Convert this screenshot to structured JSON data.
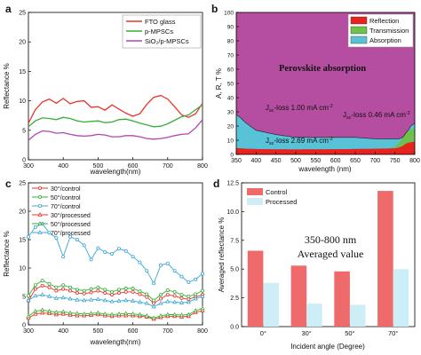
{
  "panels": {
    "a": {
      "letter": "a"
    },
    "b": {
      "letter": "b"
    },
    "c": {
      "letter": "c"
    },
    "d": {
      "letter": "d"
    }
  },
  "chart_data": [
    {
      "id": "a",
      "type": "line",
      "xlabel": "wavelength(nm)",
      "ylabel": "Reflectance %",
      "xlim": [
        300,
        800
      ],
      "ylim": [
        0,
        25
      ],
      "xticks": [
        "300",
        "400",
        "500",
        "600",
        "700",
        "800"
      ],
      "yticks": [
        "0",
        "5",
        "10",
        "15",
        "20",
        "25"
      ],
      "legend": "top-right",
      "series": [
        {
          "name": "FTO glass",
          "color": "#e8362c",
          "x": [
            300,
            320,
            340,
            360,
            380,
            400,
            420,
            440,
            460,
            480,
            500,
            520,
            540,
            560,
            580,
            600,
            620,
            640,
            660,
            680,
            700,
            720,
            740,
            760,
            780,
            800
          ],
          "y": [
            6.2,
            8.5,
            9.8,
            10.3,
            9.6,
            10.4,
            9.5,
            9.9,
            10.0,
            8.9,
            9.0,
            8.4,
            9.3,
            8.6,
            7.9,
            7.4,
            7.8,
            9.4,
            10.6,
            10.9,
            10.3,
            9.0,
            7.6,
            7.2,
            7.8,
            9.6
          ]
        },
        {
          "name": "p-MPSCs",
          "color": "#3aad3a",
          "x": [
            300,
            320,
            340,
            360,
            380,
            400,
            420,
            440,
            460,
            480,
            500,
            520,
            540,
            560,
            580,
            600,
            620,
            640,
            660,
            680,
            700,
            720,
            740,
            760,
            780,
            800
          ],
          "y": [
            5.6,
            6.6,
            7.1,
            7.0,
            6.8,
            7.2,
            7.0,
            6.6,
            6.4,
            6.5,
            6.6,
            6.3,
            6.4,
            6.8,
            6.9,
            6.6,
            6.2,
            5.9,
            5.6,
            5.7,
            6.1,
            6.7,
            7.3,
            7.6,
            8.5,
            9.3
          ]
        },
        {
          "name": "SiO₂/p-MPSCs",
          "color": "#b444b4",
          "x": [
            300,
            320,
            340,
            360,
            380,
            400,
            420,
            440,
            460,
            480,
            500,
            520,
            540,
            560,
            580,
            600,
            620,
            640,
            660,
            680,
            700,
            720,
            740,
            760,
            780,
            800
          ],
          "y": [
            3.3,
            4.3,
            4.9,
            4.8,
            4.5,
            4.6,
            4.3,
            4.1,
            4.0,
            4.1,
            4.3,
            4.2,
            3.9,
            3.9,
            4.1,
            4.1,
            3.9,
            3.6,
            3.5,
            3.6,
            3.8,
            4.1,
            4.3,
            4.4,
            5.4,
            6.8
          ]
        }
      ]
    },
    {
      "id": "b",
      "type": "area",
      "xlabel": "wavelength (nm)",
      "ylabel": "A, R, T %",
      "xlim": [
        350,
        800
      ],
      "ylim": [
        0,
        100
      ],
      "xticks": [
        "350",
        "400",
        "450",
        "500",
        "550",
        "600",
        "650",
        "700",
        "750",
        "800"
      ],
      "yticks": [
        "0",
        "10",
        "20",
        "30",
        "40",
        "50",
        "60",
        "70",
        "80",
        "90",
        "100"
      ],
      "legend": "top-right",
      "annotations": {
        "main": "Perovskite absorption",
        "jsc1": "Jsc-loss 1.00 mA cm-2",
        "jsc2": "Jsc-loss 0.46 mA cm-2",
        "jsc3": "Jsc-loss 2.69 mA cm-2"
      },
      "series": [
        {
          "name": "Reflection",
          "color": "#e8231f",
          "x": [
            350,
            375,
            400,
            450,
            500,
            550,
            600,
            650,
            700,
            730,
            750,
            760,
            770,
            780,
            790,
            800
          ],
          "y": [
            4.5,
            4.0,
            3.8,
            3.6,
            3.5,
            3.6,
            3.7,
            3.8,
            4.0,
            4.1,
            4.3,
            4.8,
            6.0,
            8.0,
            8.5,
            9.0
          ]
        },
        {
          "name": "Transmission",
          "color": "#6cc24a",
          "x": [
            350,
            700,
            740,
            750,
            760,
            770,
            780,
            790,
            800
          ],
          "y": [
            0,
            0,
            0.2,
            1.0,
            3.0,
            6.0,
            8.0,
            9.0,
            9.0
          ]
        },
        {
          "name": "Absorption",
          "color": "#58c2d6",
          "x": [
            350,
            360,
            375,
            400,
            450,
            500,
            550,
            600,
            650,
            700,
            730,
            750,
            760,
            770,
            780,
            790,
            800
          ],
          "y": [
            28,
            26,
            22,
            17,
            14,
            12,
            12,
            12,
            12,
            11,
            11,
            11,
            11,
            12,
            15,
            20,
            22
          ]
        },
        {
          "name": "Perovskite absorption",
          "color": "#b54ea0"
        }
      ]
    },
    {
      "id": "c",
      "type": "line",
      "xlabel": "wavelength(nm)",
      "ylabel": "Reflectance %",
      "xlim": [
        300,
        800
      ],
      "ylim": [
        0,
        25
      ],
      "xticks": [
        "300",
        "400",
        "500",
        "600",
        "700",
        "800"
      ],
      "yticks": [
        "0",
        "5",
        "10",
        "15",
        "20",
        "25"
      ],
      "legend": "top-left",
      "series": [
        {
          "name": "30°/control",
          "color": "#e8362c",
          "marker": "circle",
          "x": [
            300,
            320,
            340,
            360,
            380,
            400,
            420,
            440,
            460,
            480,
            500,
            520,
            540,
            560,
            580,
            600,
            620,
            640,
            660,
            680,
            700,
            720,
            740,
            760,
            780,
            800
          ],
          "y": [
            4.2,
            6.3,
            6.9,
            6.6,
            6.0,
            6.3,
            6.0,
            5.6,
            5.5,
            5.7,
            6.0,
            5.6,
            5.3,
            5.6,
            5.8,
            5.8,
            5.4,
            4.9,
            3.8,
            4.6,
            5.3,
            5.1,
            4.7,
            4.5,
            4.9,
            5.3
          ]
        },
        {
          "name": "50°/control",
          "color": "#3aad3a",
          "marker": "circle",
          "x": [
            300,
            320,
            340,
            360,
            380,
            400,
            420,
            440,
            460,
            480,
            500,
            520,
            540,
            560,
            580,
            600,
            620,
            640,
            660,
            680,
            700,
            720,
            740,
            760,
            780,
            800
          ],
          "y": [
            5.1,
            7.0,
            7.8,
            7.2,
            6.6,
            7.0,
            6.6,
            6.2,
            6.0,
            6.3,
            6.6,
            6.2,
            5.8,
            6.2,
            6.4,
            6.4,
            5.9,
            5.4,
            4.3,
            5.3,
            6.1,
            5.8,
            5.3,
            5.0,
            5.4,
            6.0
          ]
        },
        {
          "name": "70°/control",
          "color": "#3aa7d8",
          "marker": "circle",
          "x": [
            300,
            320,
            340,
            360,
            380,
            400,
            420,
            440,
            460,
            480,
            500,
            520,
            540,
            560,
            580,
            600,
            620,
            640,
            660,
            680,
            700,
            720,
            740,
            760,
            780,
            800
          ],
          "y": [
            15.5,
            17.2,
            17.8,
            16.2,
            15.3,
            12.0,
            15.5,
            15.0,
            14.0,
            11.5,
            13.5,
            12.8,
            12.5,
            13.4,
            13.0,
            12.0,
            11.0,
            9.5,
            7.3,
            10.5,
            10.8,
            9.5,
            8.5,
            7.5,
            8.0,
            9.0
          ]
        },
        {
          "name": "30°/processed",
          "color": "#e8362c",
          "marker": "triangle",
          "x": [
            300,
            320,
            340,
            360,
            380,
            400,
            420,
            440,
            460,
            480,
            500,
            520,
            540,
            560,
            580,
            600,
            620,
            640,
            660,
            680,
            700,
            720,
            740,
            760,
            780,
            800
          ],
          "y": [
            1.2,
            1.9,
            2.1,
            2.0,
            1.8,
            1.9,
            1.7,
            1.6,
            1.6,
            1.7,
            1.8,
            1.6,
            1.5,
            1.6,
            1.6,
            1.6,
            1.5,
            1.4,
            1.0,
            1.3,
            1.5,
            1.5,
            1.4,
            1.5,
            2.2,
            2.5
          ]
        },
        {
          "name": "50°/processed",
          "color": "#3aad3a",
          "marker": "triangle",
          "x": [
            300,
            320,
            340,
            360,
            380,
            400,
            420,
            440,
            460,
            480,
            500,
            520,
            540,
            560,
            580,
            600,
            620,
            640,
            660,
            680,
            700,
            720,
            740,
            760,
            780,
            800
          ],
          "y": [
            1.5,
            2.4,
            2.6,
            2.4,
            2.2,
            2.3,
            2.1,
            2.0,
            1.9,
            2.0,
            2.1,
            1.9,
            1.8,
            1.9,
            2.0,
            1.9,
            1.8,
            1.6,
            1.2,
            1.6,
            1.8,
            1.8,
            1.7,
            1.8,
            2.5,
            2.9
          ]
        },
        {
          "name": "70°/processed",
          "color": "#3aa7d8",
          "marker": "triangle",
          "x": [
            300,
            320,
            340,
            360,
            380,
            400,
            420,
            440,
            460,
            480,
            500,
            520,
            540,
            560,
            580,
            600,
            620,
            640,
            660,
            680,
            700,
            720,
            740,
            760,
            780,
            800
          ],
          "y": [
            4.3,
            5.1,
            5.3,
            5.0,
            4.7,
            4.8,
            4.6,
            4.4,
            4.3,
            4.4,
            4.5,
            4.3,
            4.1,
            4.2,
            4.3,
            4.2,
            4.0,
            3.8,
            3.2,
            3.8,
            4.1,
            4.0,
            3.9,
            4.0,
            4.6,
            5.0
          ]
        }
      ]
    },
    {
      "id": "d",
      "type": "bar",
      "xlabel": "Incident angle (Degree)",
      "ylabel": "Averaged reflectance %",
      "categories": [
        "0°",
        "30°",
        "50°",
        "70°"
      ],
      "ylim": [
        0,
        12.5
      ],
      "yticks": [
        "0.0",
        "2.5",
        "5.0",
        "7.5",
        "10.0",
        "12.5"
      ],
      "legend": "top-left",
      "annotation_line1": "350-800 nm",
      "annotation_line2": "Averaged value",
      "series": [
        {
          "name": "Control",
          "color": "#ef6b6b",
          "values": [
            6.6,
            5.3,
            4.8,
            11.8
          ]
        },
        {
          "name": "Processed",
          "color": "#cdeef7",
          "values": [
            3.8,
            2.0,
            1.9,
            5.0
          ]
        }
      ]
    }
  ]
}
